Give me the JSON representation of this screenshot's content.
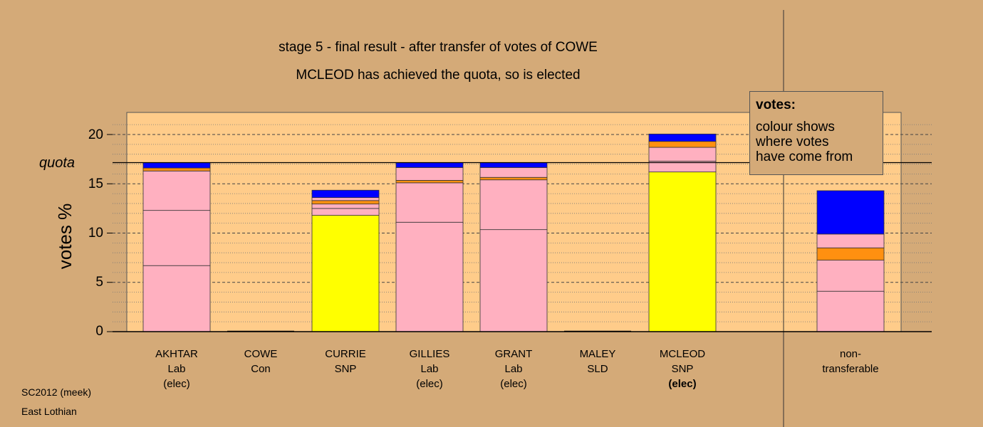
{
  "titles": {
    "line1": "stage 5 - final result - after transfer of votes of COWE",
    "line2": "MCLEOD has achieved the quota, so is elected"
  },
  "legend": {
    "title": "votes:",
    "body": "colour shows\nwhere votes\nhave come from"
  },
  "footer": {
    "line1": "SC2012 (meek)",
    "line2": "East Lothian"
  },
  "colors": {
    "background": "#d4aa78",
    "plot_area": "#ffcc8a",
    "pink": "#ffb0c0",
    "yellow": "#ffff00",
    "orange": "#ff9010",
    "blue": "#0000ff"
  },
  "chart_data": {
    "type": "bar",
    "stacked": true,
    "ylabel": "votes %",
    "ylim": [
      0,
      22
    ],
    "yticks": [
      "0",
      "5",
      "10",
      "15",
      "20"
    ],
    "quota": {
      "value": 17.15,
      "label": "quota"
    },
    "categories": [
      {
        "name": "AKHTAR",
        "party": "Lab",
        "status": "(elec)",
        "bold_status": false,
        "segments": [
          {
            "value": 6.7,
            "color": "pink"
          },
          {
            "value": 5.6,
            "color": "pink"
          },
          {
            "value": 4.0,
            "color": "pink"
          },
          {
            "value": 0.3,
            "color": "orange"
          },
          {
            "value": 0.55,
            "color": "blue"
          }
        ]
      },
      {
        "name": "COWE",
        "party": "Con",
        "status": "",
        "bold_status": false,
        "segments": []
      },
      {
        "name": "CURRIE",
        "party": "SNP",
        "status": "",
        "bold_status": false,
        "segments": [
          {
            "value": 11.8,
            "color": "yellow"
          },
          {
            "value": 0.7,
            "color": "pink"
          },
          {
            "value": 0.45,
            "color": "pink"
          },
          {
            "value": 0.35,
            "color": "orange"
          },
          {
            "value": 0.3,
            "color": "pink"
          },
          {
            "value": 0.75,
            "color": "blue"
          }
        ]
      },
      {
        "name": "GILLIES",
        "party": "Lab",
        "status": "(elec)",
        "bold_status": false,
        "segments": [
          {
            "value": 11.1,
            "color": "pink"
          },
          {
            "value": 4.0,
            "color": "pink"
          },
          {
            "value": 0.25,
            "color": "orange"
          },
          {
            "value": 1.3,
            "color": "pink"
          },
          {
            "value": 0.5,
            "color": "blue"
          }
        ]
      },
      {
        "name": "GRANT",
        "party": "Lab",
        "status": "(elec)",
        "bold_status": false,
        "segments": [
          {
            "value": 10.35,
            "color": "pink"
          },
          {
            "value": 5.05,
            "color": "pink"
          },
          {
            "value": 0.25,
            "color": "orange"
          },
          {
            "value": 1.0,
            "color": "pink"
          },
          {
            "value": 0.5,
            "color": "blue"
          }
        ]
      },
      {
        "name": "MALEY",
        "party": "SLD",
        "status": "",
        "bold_status": false,
        "segments": []
      },
      {
        "name": "MCLEOD",
        "party": "SNP",
        "status": "(elec)",
        "bold_status": true,
        "segments": [
          {
            "value": 16.2,
            "color": "yellow"
          },
          {
            "value": 1.1,
            "color": "pink"
          },
          {
            "value": 1.4,
            "color": "pink"
          },
          {
            "value": 0.6,
            "color": "orange"
          },
          {
            "value": 0.75,
            "color": "blue"
          }
        ]
      }
    ],
    "nontransferable": {
      "label_line1": "non-",
      "label_line2": "transferable",
      "segments": [
        {
          "value": 4.1,
          "color": "pink"
        },
        {
          "value": 3.15,
          "color": "pink"
        },
        {
          "value": 1.25,
          "color": "orange"
        },
        {
          "value": 1.4,
          "color": "pink"
        },
        {
          "value": 4.4,
          "color": "blue"
        }
      ]
    }
  }
}
